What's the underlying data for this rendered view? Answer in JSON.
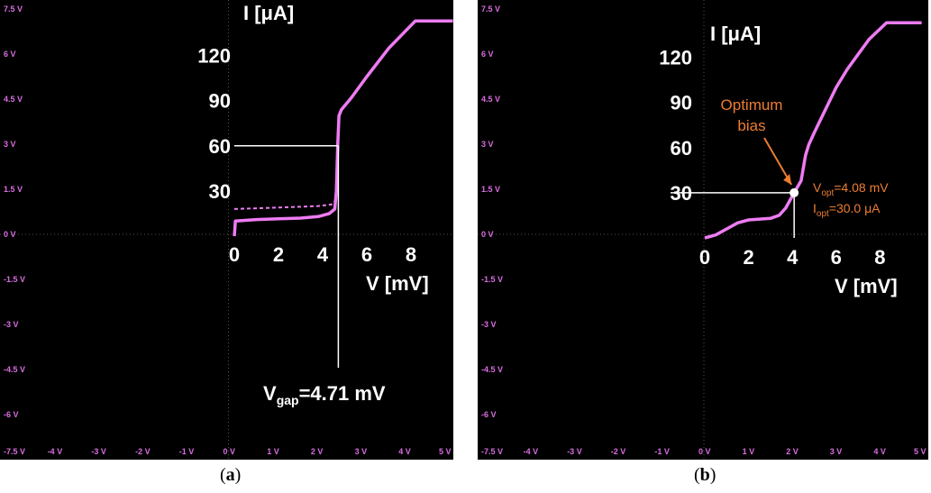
{
  "colors": {
    "background": "#000000",
    "trace": "#ee7cf3",
    "osc_label": "#d86de0",
    "annotation": "#ffffff",
    "highlight": "#ed7d31"
  },
  "oscilloscope": {
    "y_labels": [
      "7.5 V",
      "6 V",
      "4.5 V",
      "3 V",
      "1.5 V",
      "0 V",
      "-1.5 V",
      "-3 V",
      "-4.5 V",
      "-6 V"
    ],
    "y_values": [
      7.5,
      6,
      4.5,
      3,
      1.5,
      0,
      -1.5,
      -3,
      -4.5,
      -6
    ],
    "bottom_labels": [
      "-7.5 V",
      "-4 V",
      "-3 V",
      "-2 V",
      "-1 V",
      "0 V",
      "1 V",
      "2 V",
      "3 V",
      "4 V",
      "5 V"
    ],
    "x_values": [
      -4,
      -3,
      -2,
      -1,
      0,
      1,
      2,
      3,
      4,
      5
    ],
    "xlim": [
      -5,
      5
    ],
    "ylim": [
      -7.5,
      7.5
    ]
  },
  "chart_data": [
    {
      "type": "line",
      "panel": "a",
      "ylabel": "I [μA]",
      "xlabel": "V [mV]",
      "y_ticks": [
        30,
        60,
        90,
        120
      ],
      "x_ticks": [
        0,
        2,
        4,
        6,
        8
      ],
      "annotation_main": "V",
      "annotation_sub": "gap",
      "annotation_rest": "=4.71 mV",
      "marker": {
        "v": 4.71,
        "i": 60
      },
      "series": [
        {
          "x": [
            0,
            0.05,
            1,
            2,
            3,
            3.8,
            4.3,
            4.55,
            4.62,
            4.68,
            4.74,
            4.85,
            5.3,
            6,
            7,
            8,
            8.2,
            9.9
          ],
          "y": [
            0,
            10,
            11,
            11.5,
            12,
            13,
            15,
            18,
            30,
            60,
            80,
            84,
            92,
            106,
            125,
            140,
            143,
            143
          ]
        },
        {
          "x": [
            0,
            1,
            2,
            3,
            3.8,
            4.4,
            4.6
          ],
          "y": [
            18,
            18.5,
            19,
            19.5,
            20,
            21,
            24
          ],
          "dashed": true
        }
      ]
    },
    {
      "type": "line",
      "panel": "b",
      "ylabel": "I [μA]",
      "xlabel": "V [mV]",
      "y_ticks": [
        30,
        60,
        90,
        120
      ],
      "x_ticks": [
        0,
        2,
        4,
        6,
        8
      ],
      "optimum_line1": "Optimum",
      "optimum_line2": "bias",
      "vopt_main": "V",
      "vopt_sub": "opt",
      "vopt_rest": "=4.08 mV",
      "iopt_main": "I",
      "iopt_sub": "opt",
      "iopt_rest": "=30.0 μA",
      "marker": {
        "v": 4.08,
        "i": 30
      },
      "series": [
        {
          "x": [
            0,
            0.5,
            1,
            1.5,
            2,
            2.5,
            3,
            3.4,
            3.7,
            4.08,
            4.4,
            4.6,
            4.75,
            5,
            5.5,
            6,
            6.5,
            7,
            7.5,
            8.3,
            9.9
          ],
          "y": [
            0,
            2,
            6,
            10,
            12,
            12.5,
            13,
            15,
            20,
            30,
            38,
            55,
            62,
            70,
            85,
            100,
            112,
            122,
            132,
            143,
            143
          ]
        }
      ]
    }
  ]
}
